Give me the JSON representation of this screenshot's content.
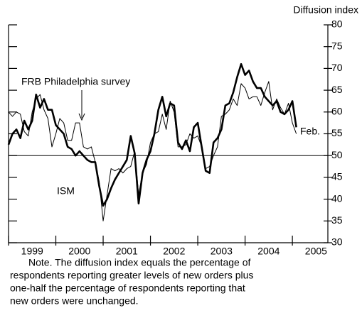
{
  "chart_data": {
    "type": "line",
    "y_axis_label": "Diffusion index",
    "annotations": [
      "FRB Philadelphia survey",
      "ISM",
      "Feb."
    ],
    "note": [
      "Note. The diffusion index equals the percentage of",
      "respondents reporting greater levels of new orders plus",
      "one-half the percentage of respondents reporting that",
      "new orders were unchanged."
    ],
    "x": [
      1999.0,
      1999.083,
      1999.167,
      1999.25,
      1999.333,
      1999.417,
      1999.5,
      1999.583,
      1999.667,
      1999.75,
      1999.833,
      1999.917,
      2000.0,
      2000.083,
      2000.167,
      2000.25,
      2000.333,
      2000.417,
      2000.5,
      2000.583,
      2000.667,
      2000.75,
      2000.833,
      2000.917,
      2001.0,
      2001.083,
      2001.167,
      2001.25,
      2001.333,
      2001.417,
      2001.5,
      2001.583,
      2001.667,
      2001.75,
      2001.833,
      2001.917,
      2002.0,
      2002.083,
      2002.167,
      2002.25,
      2002.333,
      2002.417,
      2002.5,
      2002.583,
      2002.667,
      2002.75,
      2002.833,
      2002.917,
      2003.0,
      2003.083,
      2003.167,
      2003.25,
      2003.333,
      2003.417,
      2003.5,
      2003.583,
      2003.667,
      2003.75,
      2003.833,
      2003.917,
      2004.0,
      2004.083,
      2004.167,
      2004.25,
      2004.333,
      2004.417,
      2004.5,
      2004.583,
      2004.667,
      2004.75,
      2004.833,
      2004.917,
      2005.0,
      2005.083
    ],
    "series": [
      {
        "name": "ISM",
        "color": "#000000",
        "width": 2.6,
        "values": [
          52.5,
          55,
          56,
          54,
          58,
          56,
          58,
          64,
          61,
          63,
          60.5,
          60.5,
          57,
          56,
          55,
          52,
          51.5,
          50,
          51,
          50,
          49,
          48.5,
          48.5,
          43,
          38.5,
          40,
          42.5,
          44.5,
          46,
          47.5,
          49,
          54.5,
          50.5,
          39,
          46,
          49,
          51,
          55,
          60.5,
          63.5,
          59,
          62,
          61.5,
          53,
          51.5,
          53.5,
          51,
          56.5,
          57.5,
          52,
          46.5,
          46,
          53,
          54,
          56,
          61.5,
          62,
          64.5,
          68,
          71,
          68.5,
          69.5,
          67,
          65.5,
          65.5,
          63.5,
          62.5,
          61.5,
          62.5,
          60,
          59.5,
          60.5,
          62.5,
          56.5
        ]
      },
      {
        "name": "FRB Philadelphia survey",
        "color": "#000000",
        "width": 1,
        "values": [
          60,
          59,
          60,
          59.5,
          55.5,
          54.5,
          60,
          63,
          64,
          60.5,
          58.5,
          52,
          55,
          58.5,
          57.5,
          53.5,
          53.5,
          57.5,
          57.5,
          52,
          51.5,
          52,
          48.5,
          44,
          35,
          41,
          47,
          46.5,
          47,
          46,
          47,
          47.5,
          51,
          41,
          46,
          48,
          53,
          55,
          55.5,
          59.5,
          56,
          62.5,
          60,
          52,
          52,
          52.5,
          55,
          54,
          54.5,
          52,
          47,
          47.5,
          50,
          52,
          59,
          59.5,
          60.5,
          63,
          61.5,
          66.5,
          65.5,
          63,
          63.5,
          63.5,
          61.5,
          64.5,
          67,
          60.5,
          63,
          61,
          59.5,
          62,
          57.5,
          55
        ]
      }
    ],
    "xlim": [
      1999,
      2005.75
    ],
    "xticks": [
      1999,
      2000,
      2001,
      2002,
      2003,
      2004,
      2005
    ],
    "ylim": [
      30,
      80
    ],
    "yticks": [
      30,
      35,
      40,
      45,
      50,
      55,
      60,
      65,
      70,
      75,
      80
    ],
    "hline": 50
  }
}
